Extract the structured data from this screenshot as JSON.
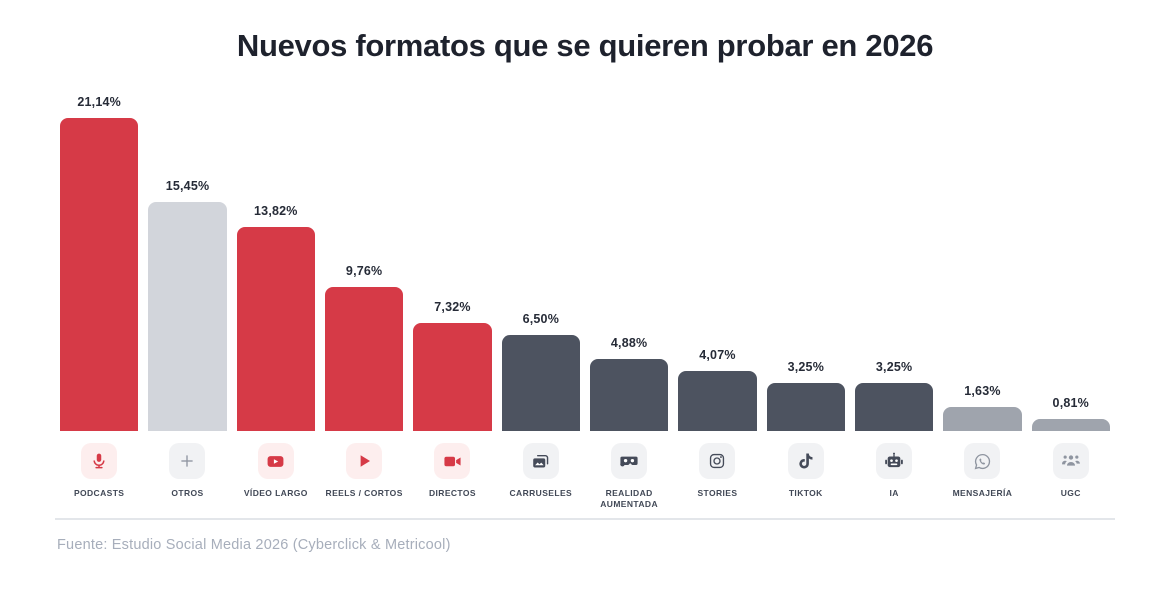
{
  "title": "Nuevos formatos que se quieren probar en 2026",
  "source": "Fuente: Estudio Social Media 2026 (Cyberclick & Metricool)",
  "colors": {
    "red": "#d63a47",
    "dark": "#4d5360",
    "light_gray": "#d2d5db",
    "mid_gray": "#9fa4ad",
    "icon_bg_red": "#fdeeee",
    "icon_bg_gray": "#f1f2f4",
    "icon_dark": "#454b59",
    "icon_muted": "#8f95a0",
    "title": "#1e222d",
    "value_label": "#262b37",
    "category_label": "#414856",
    "source_text": "#a7aebb",
    "divider": "#e3e6ea"
  },
  "chart_data": {
    "type": "bar",
    "title": "Nuevos formatos que se quieren probar en 2026",
    "xlabel": "",
    "ylabel": "",
    "ylim": [
      0,
      22
    ],
    "grid": false,
    "legend": "none",
    "value_format": "percent-comma-decimal",
    "categories": [
      "PODCASTS",
      "OTROS",
      "VÍDEO LARGO",
      "REELS / CORTOS",
      "DIRECTOS",
      "CARRUSELES",
      "REALIDAD AUMENTADA",
      "STORIES",
      "TIKTOK",
      "IA",
      "MENSAJERÍA",
      "UGC"
    ],
    "values": [
      21.14,
      15.45,
      13.82,
      9.76,
      7.32,
      6.5,
      4.88,
      4.07,
      3.25,
      3.25,
      1.63,
      0.81
    ],
    "value_labels": [
      "21,14%",
      "15,45%",
      "13,82%",
      "9,76%",
      "7,32%",
      "6,50%",
      "4,88%",
      "4,07%",
      "3,25%",
      "3,25%",
      "1,63%",
      "0,81%"
    ],
    "items": [
      {
        "label": "PODCASTS",
        "value": 21.14,
        "value_label": "21,14%",
        "bar_color": "red",
        "icon": "microphone-icon",
        "icon_theme": "red"
      },
      {
        "label": "OTROS",
        "value": 15.45,
        "value_label": "15,45%",
        "bar_color": "light_gray",
        "icon": "plus-icon",
        "icon_theme": "muted"
      },
      {
        "label": "VÍDEO LARGO",
        "value": 13.82,
        "value_label": "13,82%",
        "bar_color": "red",
        "icon": "youtube-icon",
        "icon_theme": "red"
      },
      {
        "label": "REELS / CORTOS",
        "value": 9.76,
        "value_label": "9,76%",
        "bar_color": "red",
        "icon": "play-icon",
        "icon_theme": "red"
      },
      {
        "label": "DIRECTOS",
        "value": 7.32,
        "value_label": "7,32%",
        "bar_color": "red",
        "icon": "video-camera-icon",
        "icon_theme": "red"
      },
      {
        "label": "CARRUSELES",
        "value": 6.5,
        "value_label": "6,50%",
        "bar_color": "dark",
        "icon": "carousel-icon",
        "icon_theme": "dark"
      },
      {
        "label": "REALIDAD AUMENTADA",
        "value": 4.88,
        "value_label": "4,88%",
        "bar_color": "dark",
        "icon": "vr-goggles-icon",
        "icon_theme": "dark"
      },
      {
        "label": "STORIES",
        "value": 4.07,
        "value_label": "4,07%",
        "bar_color": "dark",
        "icon": "instagram-icon",
        "icon_theme": "dark"
      },
      {
        "label": "TIKTOK",
        "value": 3.25,
        "value_label": "3,25%",
        "bar_color": "dark",
        "icon": "tiktok-icon",
        "icon_theme": "dark"
      },
      {
        "label": "IA",
        "value": 3.25,
        "value_label": "3,25%",
        "bar_color": "dark",
        "icon": "robot-icon",
        "icon_theme": "dark"
      },
      {
        "label": "MENSAJERÍA",
        "value": 1.63,
        "value_label": "1,63%",
        "bar_color": "mid_gray",
        "icon": "whatsapp-icon",
        "icon_theme": "muted"
      },
      {
        "label": "UGC",
        "value": 0.81,
        "value_label": "0,81%",
        "bar_color": "mid_gray",
        "icon": "people-icon",
        "icon_theme": "muted"
      }
    ]
  }
}
